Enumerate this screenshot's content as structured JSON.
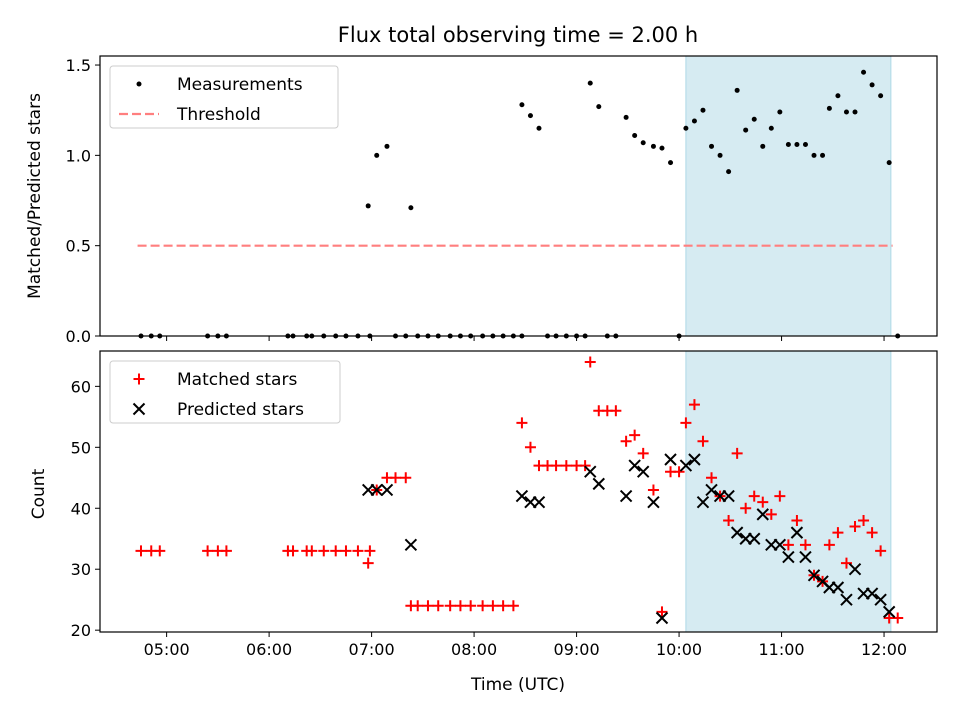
{
  "chart_data": [
    {
      "type": "scatter",
      "title": "Flux total observing time = 2.00 h",
      "xlabel": "",
      "ylabel": "Matched/Predicted stars",
      "ylim": [
        0,
        1.55
      ],
      "xlim": [
        "04:21",
        "12:31"
      ],
      "yticks": [
        0.0,
        0.5,
        1.0,
        1.5
      ],
      "ytick_labels": [
        "0.0",
        "0.5",
        "1.0",
        "1.5"
      ],
      "grid": false,
      "legend_position": "top-left",
      "highlight_span": {
        "x": [
          "10:04",
          "12:04"
        ],
        "color": "#add8e6"
      },
      "series": [
        {
          "name": "Measurements",
          "marker": "dot",
          "color": "#000000",
          "points": [
            [
              "04:45",
              0
            ],
            [
              "04:51",
              0
            ],
            [
              "04:56",
              0
            ],
            [
              "05:24",
              0
            ],
            [
              "05:30",
              0
            ],
            [
              "05:35",
              0
            ],
            [
              "06:11",
              0
            ],
            [
              "06:14",
              0
            ],
            [
              "06:22",
              0
            ],
            [
              "06:25",
              0
            ],
            [
              "06:32",
              0
            ],
            [
              "06:39",
              0
            ],
            [
              "06:45",
              0
            ],
            [
              "06:52",
              0
            ],
            [
              "06:59",
              0
            ],
            [
              "06:58",
              0.72
            ],
            [
              "07:03",
              1.0
            ],
            [
              "07:09",
              1.05
            ],
            [
              "07:14",
              0
            ],
            [
              "07:20",
              0
            ],
            [
              "07:23",
              0.71
            ],
            [
              "07:27",
              0
            ],
            [
              "07:33",
              0
            ],
            [
              "07:39",
              0
            ],
            [
              "07:46",
              0
            ],
            [
              "07:52",
              0
            ],
            [
              "07:58",
              0
            ],
            [
              "08:05",
              0
            ],
            [
              "08:11",
              0
            ],
            [
              "08:17",
              0
            ],
            [
              "08:23",
              0
            ],
            [
              "08:28",
              0
            ],
            [
              "08:28",
              1.28
            ],
            [
              "08:33",
              1.22
            ],
            [
              "08:38",
              1.15
            ],
            [
              "08:43",
              0
            ],
            [
              "08:48",
              0
            ],
            [
              "08:54",
              0
            ],
            [
              "09:00",
              0
            ],
            [
              "09:05",
              0
            ],
            [
              "09:08",
              1.4
            ],
            [
              "09:13",
              1.27
            ],
            [
              "09:18",
              0
            ],
            [
              "09:23",
              0
            ],
            [
              "09:29",
              1.21
            ],
            [
              "09:34",
              1.11
            ],
            [
              "09:39",
              1.07
            ],
            [
              "09:45",
              1.05
            ],
            [
              "09:50",
              1.04
            ],
            [
              "09:55",
              0.96
            ],
            [
              "10:00",
              0
            ],
            [
              "10:04",
              1.15
            ],
            [
              "10:09",
              1.19
            ],
            [
              "10:14",
              1.25
            ],
            [
              "10:19",
              1.05
            ],
            [
              "10:24",
              1.0
            ],
            [
              "10:29",
              0.91
            ],
            [
              "10:34",
              1.36
            ],
            [
              "10:39",
              1.14
            ],
            [
              "10:44",
              1.2
            ],
            [
              "10:49",
              1.05
            ],
            [
              "10:54",
              1.15
            ],
            [
              "10:59",
              1.24
            ],
            [
              "11:04",
              1.06
            ],
            [
              "11:09",
              1.06
            ],
            [
              "11:14",
              1.06
            ],
            [
              "11:19",
              1.0
            ],
            [
              "11:24",
              1.0
            ],
            [
              "11:28",
              1.26
            ],
            [
              "11:33",
              1.33
            ],
            [
              "11:38",
              1.24
            ],
            [
              "11:43",
              1.24
            ],
            [
              "11:48",
              1.46
            ],
            [
              "11:53",
              1.39
            ],
            [
              "11:58",
              1.33
            ],
            [
              "12:03",
              0.96
            ],
            [
              "12:08",
              0
            ]
          ]
        },
        {
          "name": "Threshold",
          "style": "dashed",
          "color": "#ff7f7f",
          "points": [
            [
              "04:43",
              0.5
            ],
            [
              "12:05",
              0.5
            ]
          ]
        }
      ]
    },
    {
      "type": "scatter",
      "title": "",
      "xlabel": "Time (UTC)",
      "ylabel": "Count",
      "ylim": [
        19.7,
        65.8
      ],
      "xlim": [
        "04:21",
        "12:31"
      ],
      "yticks": [
        20,
        30,
        40,
        50,
        60
      ],
      "ytick_labels": [
        "20",
        "30",
        "40",
        "50",
        "60"
      ],
      "xticks": [
        "05:00",
        "06:00",
        "07:00",
        "08:00",
        "09:00",
        "10:00",
        "11:00",
        "12:00"
      ],
      "xtick_labels": [
        "05:00",
        "06:00",
        "07:00",
        "08:00",
        "09:00",
        "10:00",
        "11:00",
        "12:00"
      ],
      "grid": false,
      "legend_position": "top-left",
      "highlight_span": {
        "x": [
          "10:04",
          "12:04"
        ],
        "color": "#add8e6"
      },
      "series": [
        {
          "name": "Matched stars",
          "marker": "plus",
          "color": "#ff0000",
          "points": [
            [
              "04:45",
              33
            ],
            [
              "04:51",
              33
            ],
            [
              "04:56",
              33
            ],
            [
              "05:24",
              33
            ],
            [
              "05:30",
              33
            ],
            [
              "05:35",
              33
            ],
            [
              "06:11",
              33
            ],
            [
              "06:14",
              33
            ],
            [
              "06:22",
              33
            ],
            [
              "06:25",
              33
            ],
            [
              "06:32",
              33
            ],
            [
              "06:39",
              33
            ],
            [
              "06:45",
              33
            ],
            [
              "06:52",
              33
            ],
            [
              "06:59",
              33
            ],
            [
              "06:58",
              31
            ],
            [
              "07:03",
              43
            ],
            [
              "07:09",
              45
            ],
            [
              "07:14",
              45
            ],
            [
              "07:20",
              45
            ],
            [
              "07:23",
              24
            ],
            [
              "07:27",
              24
            ],
            [
              "07:33",
              24
            ],
            [
              "07:39",
              24
            ],
            [
              "07:46",
              24
            ],
            [
              "07:52",
              24
            ],
            [
              "07:58",
              24
            ],
            [
              "08:05",
              24
            ],
            [
              "08:11",
              24
            ],
            [
              "08:17",
              24
            ],
            [
              "08:23",
              24
            ],
            [
              "08:28",
              54
            ],
            [
              "08:33",
              50
            ],
            [
              "08:38",
              47
            ],
            [
              "08:43",
              47
            ],
            [
              "08:48",
              47
            ],
            [
              "08:54",
              47
            ],
            [
              "09:00",
              47
            ],
            [
              "09:05",
              47
            ],
            [
              "09:08",
              64
            ],
            [
              "09:13",
              56
            ],
            [
              "09:18",
              56
            ],
            [
              "09:23",
              56
            ],
            [
              "09:29",
              51
            ],
            [
              "09:34",
              52
            ],
            [
              "09:39",
              49
            ],
            [
              "09:45",
              43
            ],
            [
              "09:50",
              23
            ],
            [
              "09:55",
              46
            ],
            [
              "10:00",
              46
            ],
            [
              "10:04",
              54
            ],
            [
              "10:09",
              57
            ],
            [
              "10:14",
              51
            ],
            [
              "10:19",
              45
            ],
            [
              "10:24",
              42
            ],
            [
              "10:29",
              38
            ],
            [
              "10:34",
              49
            ],
            [
              "10:39",
              40
            ],
            [
              "10:44",
              42
            ],
            [
              "10:49",
              41
            ],
            [
              "10:54",
              39
            ],
            [
              "10:59",
              42
            ],
            [
              "11:04",
              34
            ],
            [
              "11:09",
              38
            ],
            [
              "11:14",
              34
            ],
            [
              "11:19",
              29
            ],
            [
              "11:24",
              28
            ],
            [
              "11:28",
              34
            ],
            [
              "11:33",
              36
            ],
            [
              "11:38",
              31
            ],
            [
              "11:43",
              37
            ],
            [
              "11:48",
              38
            ],
            [
              "11:53",
              36
            ],
            [
              "11:58",
              33
            ],
            [
              "12:03",
              22
            ],
            [
              "12:08",
              22
            ]
          ]
        },
        {
          "name": "Predicted stars",
          "marker": "x",
          "color": "#000000",
          "points": [
            [
              "06:58",
              43
            ],
            [
              "07:03",
              43
            ],
            [
              "07:09",
              43
            ],
            [
              "07:23",
              34
            ],
            [
              "08:28",
              42
            ],
            [
              "08:33",
              41
            ],
            [
              "08:38",
              41
            ],
            [
              "09:08",
              46
            ],
            [
              "09:13",
              44
            ],
            [
              "09:29",
              42
            ],
            [
              "09:34",
              47
            ],
            [
              "09:39",
              46
            ],
            [
              "09:45",
              41
            ],
            [
              "09:50",
              22
            ],
            [
              "09:55",
              48
            ],
            [
              "10:04",
              47
            ],
            [
              "10:09",
              48
            ],
            [
              "10:14",
              41
            ],
            [
              "10:19",
              43
            ],
            [
              "10:24",
              42
            ],
            [
              "10:29",
              42
            ],
            [
              "10:34",
              36
            ],
            [
              "10:39",
              35
            ],
            [
              "10:44",
              35
            ],
            [
              "10:49",
              39
            ],
            [
              "10:54",
              34
            ],
            [
              "10:59",
              34
            ],
            [
              "11:04",
              32
            ],
            [
              "11:09",
              36
            ],
            [
              "11:14",
              32
            ],
            [
              "11:19",
              29
            ],
            [
              "11:24",
              28
            ],
            [
              "11:28",
              27
            ],
            [
              "11:33",
              27
            ],
            [
              "11:38",
              25
            ],
            [
              "11:43",
              30
            ],
            [
              "11:48",
              26
            ],
            [
              "11:53",
              26
            ],
            [
              "11:58",
              25
            ],
            [
              "12:03",
              23
            ]
          ]
        }
      ]
    }
  ]
}
